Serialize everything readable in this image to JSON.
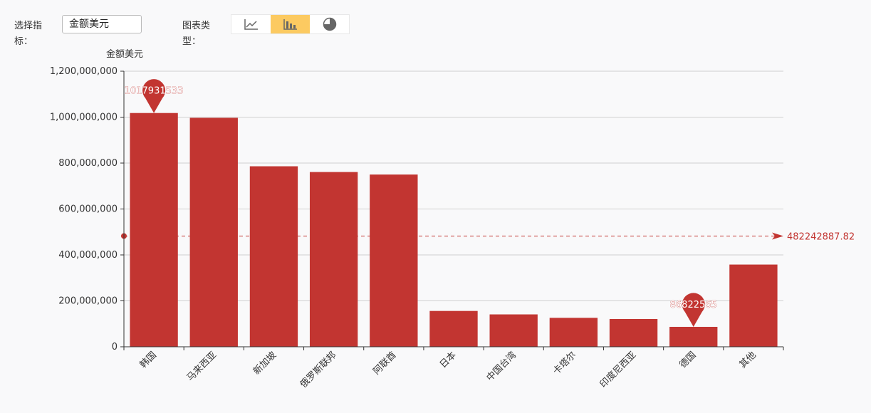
{
  "controls": {
    "indicator_label": "选择指标：",
    "indicator_value": "金额美元",
    "chart_type_label": "图表类型：",
    "chart_types": [
      {
        "icon": "line-chart-icon",
        "active": false
      },
      {
        "icon": "bar-chart-icon",
        "active": true
      },
      {
        "icon": "pie-chart-icon",
        "active": false
      }
    ]
  },
  "colors": {
    "bar": "#c23531",
    "accent": "#fcca61"
  },
  "chart_data": {
    "type": "bar",
    "ylabel": "金额美元",
    "ylim": [
      0,
      1200000000
    ],
    "yticks": [
      "0",
      "200,000,000",
      "400,000,000",
      "600,000,000",
      "800,000,000",
      "1,000,000,000",
      "1,200,000,000"
    ],
    "ytick_values": [
      0,
      200000000,
      400000000,
      600000000,
      800000000,
      1000000000,
      1200000000
    ],
    "categories": [
      "韩国",
      "马来西亚",
      "新加坡",
      "俄罗斯联邦",
      "阿联酋",
      "日本",
      "中国台湾",
      "卡塔尔",
      "印度尼西亚",
      "德国",
      "其他"
    ],
    "values": [
      1017931533,
      997000000,
      786000000,
      761000000,
      750000000,
      156000000,
      141000000,
      126000000,
      121000000,
      86822565,
      358000000
    ],
    "grid": true,
    "mark_points": [
      {
        "label": "1017931533",
        "value": 1017931533,
        "index": 0
      },
      {
        "label": "86822565",
        "value": 86822565,
        "index": 9
      }
    ],
    "mark_line": {
      "label": "482242887.82",
      "value": 482242887.82
    }
  }
}
